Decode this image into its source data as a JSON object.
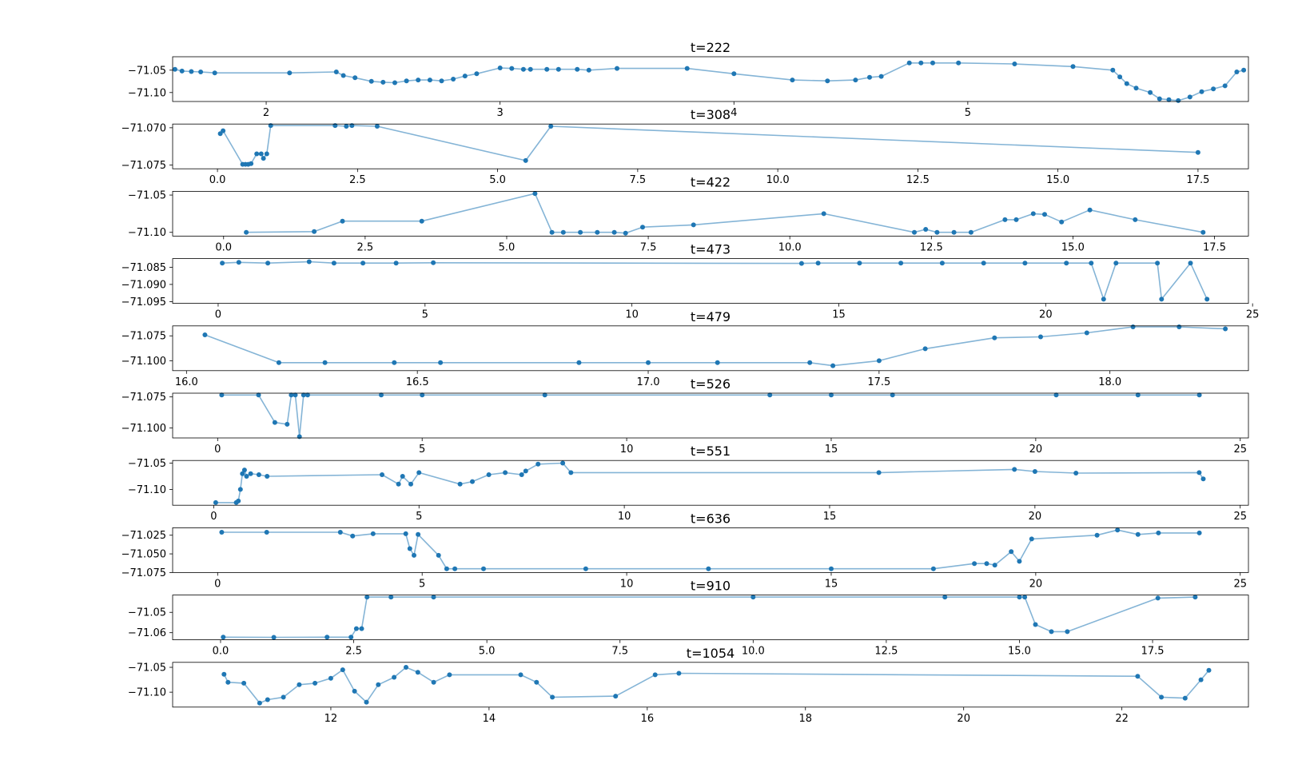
{
  "figure": {
    "background": "#ffffff",
    "marker_color": "#1f77b4",
    "line_color": "#1f77b4",
    "line_alpha": 0.55
  },
  "chart_data": [
    {
      "type": "line",
      "title": "t=222",
      "xlim": [
        1.6,
        6.2
      ],
      "ylim": [
        -71.12,
        -71.02
      ],
      "x_ticks": [
        2,
        3,
        4,
        5
      ],
      "x_tick_labels": [
        "2",
        "3",
        "4",
        "5"
      ],
      "y_ticks": [
        -71.05,
        -71.1
      ],
      "y_tick_labels": [
        "−71.05",
        "−71.10"
      ],
      "series": [
        {
          "x": [
            1.61,
            1.64,
            1.68,
            1.72,
            1.78,
            2.1,
            2.3,
            2.33,
            2.38,
            2.45,
            2.5,
            2.55,
            2.6,
            2.65,
            2.7,
            2.75,
            2.8,
            2.85,
            2.9,
            3.0,
            3.05,
            3.1,
            3.13,
            3.2,
            3.25,
            3.33,
            3.38,
            3.5,
            3.8,
            4.0,
            4.25,
            4.4,
            4.52,
            4.58,
            4.63,
            4.75,
            4.8,
            4.85,
            4.96,
            5.2,
            5.45,
            5.62,
            5.65,
            5.68,
            5.72,
            5.78,
            5.82,
            5.86,
            5.9,
            5.95,
            6.0,
            6.05,
            6.1,
            6.15,
            6.18
          ],
          "y": [
            -71.048,
            -71.052,
            -71.053,
            -71.054,
            -71.056,
            -71.056,
            -71.054,
            -71.062,
            -71.067,
            -71.075,
            -71.077,
            -71.078,
            -71.074,
            -71.072,
            -71.072,
            -71.074,
            -71.07,
            -71.063,
            -71.058,
            -71.045,
            -71.046,
            -71.048,
            -71.048,
            -71.048,
            -71.048,
            -71.048,
            -71.05,
            -71.046,
            -71.046,
            -71.058,
            -71.072,
            -71.074,
            -71.072,
            -71.066,
            -71.064,
            -71.034,
            -71.034,
            -71.034,
            -71.034,
            -71.036,
            -71.042,
            -71.05,
            -71.065,
            -71.08,
            -71.09,
            -71.1,
            -71.114,
            -71.116,
            -71.118,
            -71.11,
            -71.098,
            -71.092,
            -71.085,
            -71.054,
            -71.05
          ]
        }
      ]
    },
    {
      "type": "line",
      "title": "t=308",
      "xlim": [
        -0.8,
        18.4
      ],
      "ylim": [
        -71.0755,
        -71.0695
      ],
      "x_ticks": [
        0.0,
        2.5,
        5.0,
        7.5,
        10.0,
        12.5,
        15.0,
        17.5
      ],
      "x_tick_labels": [
        "0.0",
        "2.5",
        "5.0",
        "7.5",
        "10.0",
        "12.5",
        "15.0",
        "17.5"
      ],
      "y_ticks": [
        -71.07,
        -71.075
      ],
      "y_tick_labels": [
        "−71.070",
        "−71.075"
      ],
      "series": [
        {
          "x": [
            0.05,
            0.1,
            0.45,
            0.5,
            0.55,
            0.6,
            0.7,
            0.78,
            0.82,
            0.88,
            0.95,
            2.1,
            2.3,
            2.4,
            2.85,
            5.5,
            5.95,
            17.5
          ],
          "y": [
            -71.0708,
            -71.0704,
            -71.0749,
            -71.0749,
            -71.0749,
            -71.0748,
            -71.0735,
            -71.0735,
            -71.0741,
            -71.0735,
            -71.0697,
            -71.0697,
            -71.0698,
            -71.0697,
            -71.0698,
            -71.0744,
            -71.0698,
            -71.0733
          ]
        }
      ]
    },
    {
      "type": "line",
      "title": "t=422",
      "xlim": [
        -0.9,
        18.1
      ],
      "ylim": [
        -71.105,
        -71.045
      ],
      "x_ticks": [
        0.0,
        2.5,
        5.0,
        7.5,
        10.0,
        12.5,
        15.0,
        17.5
      ],
      "x_tick_labels": [
        "0.0",
        "2.5",
        "5.0",
        "7.5",
        "10.0",
        "12.5",
        "15.0",
        "17.5"
      ],
      "y_ticks": [
        -71.05,
        -71.1
      ],
      "y_tick_labels": [
        "−71.05",
        "−71.10"
      ],
      "series": [
        {
          "x": [
            0.4,
            1.6,
            2.1,
            3.5,
            5.5,
            5.8,
            6.0,
            6.3,
            6.6,
            6.9,
            7.1,
            7.4,
            8.3,
            10.6,
            12.2,
            12.4,
            12.6,
            12.9,
            13.2,
            13.8,
            14.0,
            14.3,
            14.5,
            14.8,
            15.3,
            16.1,
            17.3
          ],
          "y": [
            -71.1,
            -71.099,
            -71.085,
            -71.085,
            -71.048,
            -71.1,
            -71.1,
            -71.1,
            -71.1,
            -71.1,
            -71.101,
            -71.093,
            -71.09,
            -71.075,
            -71.1,
            -71.096,
            -71.1,
            -71.1,
            -71.1,
            -71.083,
            -71.083,
            -71.075,
            -71.076,
            -71.086,
            -71.07,
            -71.083,
            -71.1
          ]
        }
      ]
    },
    {
      "type": "line",
      "title": "t=473",
      "xlim": [
        -1.1,
        24.9
      ],
      "ylim": [
        -71.0955,
        -71.0825
      ],
      "x_ticks": [
        0,
        5,
        10,
        15,
        20,
        25
      ],
      "x_tick_labels": [
        "0",
        "5",
        "10",
        "15",
        "20",
        "25"
      ],
      "y_ticks": [
        -71.085,
        -71.09,
        -71.095
      ],
      "y_tick_labels": [
        "−71.085",
        "−71.090",
        "−71.095"
      ],
      "series": [
        {
          "x": [
            0.1,
            0.5,
            1.2,
            2.2,
            2.8,
            3.5,
            4.3,
            5.2,
            14.1,
            14.5,
            15.5,
            16.5,
            17.5,
            18.5,
            19.5,
            20.5,
            21.1,
            21.4,
            21.7,
            22.7,
            22.8,
            23.5,
            23.9
          ],
          "y": [
            -71.0838,
            -71.0836,
            -71.0838,
            -71.0834,
            -71.0838,
            -71.0838,
            -71.0838,
            -71.0837,
            -71.0839,
            -71.0838,
            -71.0838,
            -71.0838,
            -71.0838,
            -71.0838,
            -71.0838,
            -71.0838,
            -71.0838,
            -71.0943,
            -71.0838,
            -71.0838,
            -71.0943,
            -71.0838,
            -71.0943
          ]
        }
      ]
    },
    {
      "type": "line",
      "title": "t=479",
      "xlim": [
        15.97,
        18.3
      ],
      "ylim": [
        -71.11,
        -71.065
      ],
      "x_ticks": [
        16.0,
        16.5,
        17.0,
        17.5,
        18.0
      ],
      "x_tick_labels": [
        "16.0",
        "16.5",
        "17.0",
        "17.5",
        "18.0"
      ],
      "y_ticks": [
        -71.075,
        -71.1
      ],
      "y_tick_labels": [
        "−71.075",
        "−71.100"
      ],
      "series": [
        {
          "x": [
            16.04,
            16.2,
            16.3,
            16.45,
            16.55,
            16.85,
            17.0,
            17.15,
            17.35,
            17.4,
            17.5,
            17.6,
            17.75,
            17.85,
            17.95,
            18.05,
            18.15,
            18.25
          ],
          "y": [
            -71.074,
            -71.102,
            -71.102,
            -71.102,
            -71.102,
            -71.102,
            -71.102,
            -71.102,
            -71.102,
            -71.105,
            -71.1,
            -71.088,
            -71.077,
            -71.076,
            -71.072,
            -71.066,
            -71.066,
            -71.068
          ]
        }
      ]
    },
    {
      "type": "line",
      "title": "t=526",
      "xlim": [
        -1.1,
        25.2
      ],
      "ylim": [
        -71.108,
        -71.072
      ],
      "x_ticks": [
        0,
        5,
        10,
        15,
        20,
        25
      ],
      "x_tick_labels": [
        "0",
        "5",
        "10",
        "15",
        "20",
        "25"
      ],
      "y_ticks": [
        -71.075,
        -71.1
      ],
      "y_tick_labels": [
        "−71.075",
        "−71.100"
      ],
      "series": [
        {
          "x": [
            0.1,
            1.0,
            1.4,
            1.7,
            1.8,
            1.9,
            2.0,
            2.1,
            2.2,
            4.0,
            5.0,
            8.0,
            13.5,
            15.0,
            16.5,
            20.5,
            22.5,
            24.0
          ],
          "y": [
            -71.0735,
            -71.0735,
            -71.0955,
            -71.097,
            -71.0735,
            -71.0735,
            -71.107,
            -71.0735,
            -71.0735,
            -71.0735,
            -71.0735,
            -71.0735,
            -71.0735,
            -71.0735,
            -71.0735,
            -71.0735,
            -71.0735,
            -71.0735
          ]
        }
      ]
    },
    {
      "type": "line",
      "title": "t=551",
      "xlim": [
        -1.0,
        25.2
      ],
      "ylim": [
        -71.13,
        -71.045
      ],
      "x_ticks": [
        0,
        5,
        10,
        15,
        20,
        25
      ],
      "x_tick_labels": [
        "0",
        "5",
        "10",
        "15",
        "20",
        "25"
      ],
      "y_ticks": [
        -71.05,
        -71.1
      ],
      "y_tick_labels": [
        "−71.05",
        "−71.10"
      ],
      "series": [
        {
          "x": [
            0.05,
            0.55,
            0.6,
            0.65,
            0.7,
            0.75,
            0.8,
            0.9,
            1.1,
            1.3,
            4.1,
            4.5,
            4.6,
            4.8,
            5.0,
            6.0,
            6.3,
            6.7,
            7.1,
            7.5,
            7.6,
            7.9,
            8.5,
            8.7,
            16.2,
            19.5,
            20.0,
            21.0,
            24.0,
            24.1
          ],
          "y": [
            -71.125,
            -71.125,
            -71.122,
            -71.1,
            -71.07,
            -71.063,
            -71.075,
            -71.07,
            -71.072,
            -71.075,
            -71.072,
            -71.09,
            -71.075,
            -71.09,
            -71.068,
            -71.09,
            -71.085,
            -71.072,
            -71.068,
            -71.072,
            -71.065,
            -71.052,
            -71.05,
            -71.068,
            -71.068,
            -71.062,
            -71.066,
            -71.069,
            -71.068,
            -71.08
          ]
        }
      ]
    },
    {
      "type": "line",
      "title": "t=636",
      "xlim": [
        -1.1,
        25.2
      ],
      "ylim": [
        -71.075,
        -71.015
      ],
      "x_ticks": [
        0,
        5,
        10,
        15,
        20,
        25
      ],
      "x_tick_labels": [
        "0",
        "5",
        "10",
        "15",
        "20",
        "25"
      ],
      "y_ticks": [
        -71.025,
        -71.05,
        -71.075
      ],
      "y_tick_labels": [
        "−71.025",
        "−71.050",
        "−71.075"
      ],
      "series": [
        {
          "x": [
            0.1,
            1.2,
            3.0,
            3.3,
            3.8,
            4.6,
            4.7,
            4.8,
            4.9,
            5.4,
            5.6,
            5.8,
            6.5,
            9.0,
            12.0,
            15.0,
            17.5,
            18.5,
            18.8,
            19.0,
            19.4,
            19.6,
            19.9,
            21.5,
            22.0,
            22.5,
            23.0,
            24.0
          ],
          "y": [
            -71.021,
            -71.021,
            -71.021,
            -71.026,
            -71.023,
            -71.023,
            -71.043,
            -71.052,
            -71.024,
            -71.052,
            -71.07,
            -71.07,
            -71.07,
            -71.07,
            -71.07,
            -71.07,
            -71.07,
            -71.063,
            -71.063,
            -71.065,
            -71.047,
            -71.06,
            -71.03,
            -71.025,
            -71.018,
            -71.024,
            -71.022,
            -71.022
          ]
        }
      ]
    },
    {
      "type": "line",
      "title": "t=910",
      "xlim": [
        -0.9,
        19.3
      ],
      "ylim": [
        -71.0635,
        -71.0415
      ],
      "x_ticks": [
        0.0,
        2.5,
        5.0,
        7.5,
        10.0,
        12.5,
        15.0,
        17.5
      ],
      "x_tick_labels": [
        "0.0",
        "2.5",
        "5.0",
        "7.5",
        "10.0",
        "12.5",
        "15.0",
        "17.5"
      ],
      "y_ticks": [
        -71.05,
        -71.06
      ],
      "y_tick_labels": [
        "−71.05",
        "−71.06"
      ],
      "series": [
        {
          "x": [
            0.05,
            1.0,
            2.0,
            2.45,
            2.55,
            2.65,
            2.75,
            3.2,
            4.0,
            10.0,
            13.6,
            15.0,
            15.1,
            15.3,
            15.6,
            15.9,
            17.6,
            18.3
          ],
          "y": [
            -71.0622,
            -71.0623,
            -71.0622,
            -71.0622,
            -71.058,
            -71.058,
            -71.0425,
            -71.0425,
            -71.0425,
            -71.0425,
            -71.0425,
            -71.0425,
            -71.0425,
            -71.056,
            -71.0595,
            -71.0595,
            -71.043,
            -71.0425
          ]
        }
      ]
    },
    {
      "type": "line",
      "title": "t=1054",
      "xlim": [
        10.0,
        23.6
      ],
      "ylim": [
        -71.13,
        -71.04
      ],
      "x_ticks": [
        12,
        14,
        16,
        18,
        20,
        22
      ],
      "x_tick_labels": [
        "12",
        "14",
        "16",
        "18",
        "20",
        "22"
      ],
      "y_ticks": [
        -71.05,
        -71.1
      ],
      "y_tick_labels": [
        "−71.05",
        "−71.10"
      ],
      "series": [
        {
          "x": [
            10.65,
            10.7,
            10.9,
            11.1,
            11.2,
            11.4,
            11.6,
            11.8,
            12.0,
            12.15,
            12.3,
            12.45,
            12.6,
            12.8,
            12.95,
            13.1,
            13.3,
            13.5,
            14.4,
            14.6,
            14.8,
            15.6,
            16.1,
            16.4,
            22.2,
            22.5,
            22.8,
            23.0,
            23.1
          ],
          "y": [
            -71.064,
            -71.08,
            -71.082,
            -71.122,
            -71.115,
            -71.11,
            -71.085,
            -71.082,
            -71.072,
            -71.055,
            -71.098,
            -71.12,
            -71.085,
            -71.07,
            -71.05,
            -71.06,
            -71.08,
            -71.065,
            -71.065,
            -71.08,
            -71.11,
            -71.108,
            -71.065,
            -71.062,
            -71.068,
            -71.11,
            -71.112,
            -71.075,
            -71.056
          ]
        }
      ]
    }
  ]
}
